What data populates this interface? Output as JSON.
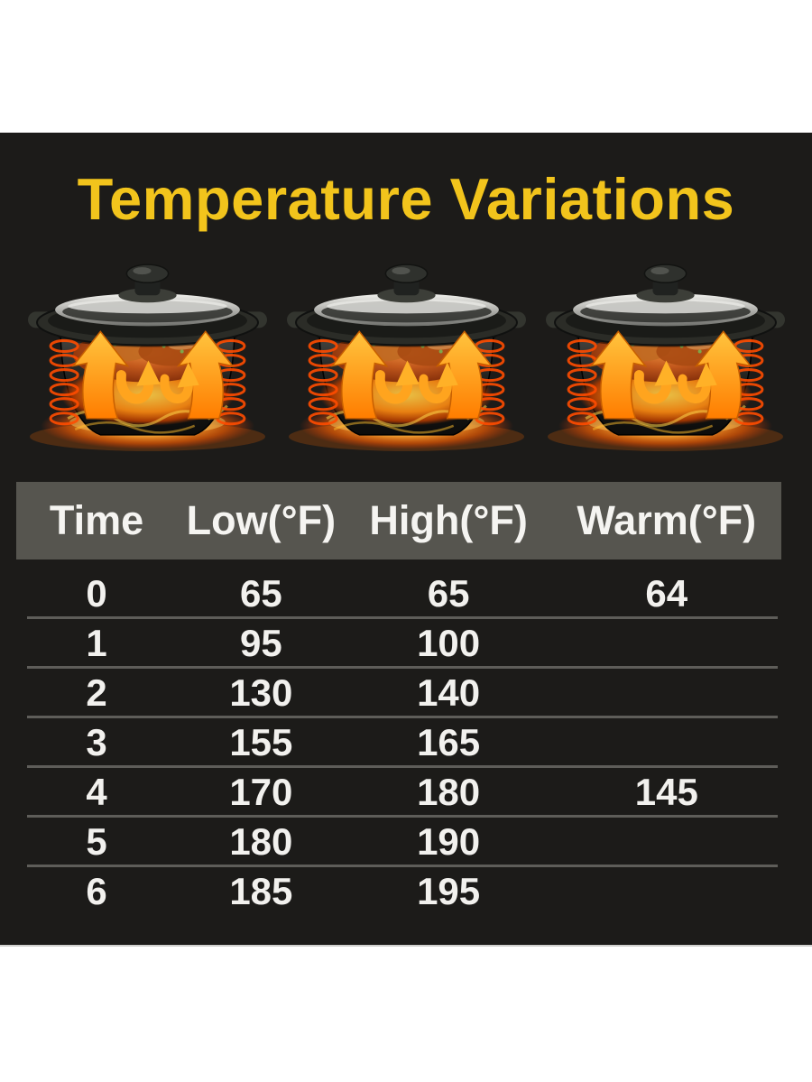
{
  "title": "Temperature Variations",
  "colors": {
    "page_bg": "#ffffff",
    "panel": "#1c1b19",
    "accent": "#f2c41c",
    "header_bg": "#56554f",
    "header_text": "#f5f4f1",
    "cell_text": "#f2f1ee",
    "divider": "#5e5d59"
  },
  "illustration": {
    "icon": "slow-cooker-heat-circulation-icon",
    "count": 3
  },
  "table": {
    "columns": [
      "Time",
      "Low(°F)",
      "High(°F)",
      "Warm(°F)"
    ],
    "rows": [
      [
        "0",
        "65",
        "65",
        "64"
      ],
      [
        "1",
        "95",
        "100",
        ""
      ],
      [
        "2",
        "130",
        "140",
        ""
      ],
      [
        "3",
        "155",
        "165",
        ""
      ],
      [
        "4",
        "170",
        "180",
        "145"
      ],
      [
        "5",
        "180",
        "190",
        ""
      ],
      [
        "6",
        "185",
        "195",
        ""
      ]
    ]
  },
  "chart_data": {
    "type": "table",
    "title": "Temperature Variations",
    "columns": [
      "Time",
      "Low(°F)",
      "High(°F)",
      "Warm(°F)"
    ],
    "rows": [
      [
        0,
        65,
        65,
        64
      ],
      [
        1,
        95,
        100,
        null
      ],
      [
        2,
        130,
        140,
        null
      ],
      [
        3,
        155,
        165,
        null
      ],
      [
        4,
        170,
        180,
        145
      ],
      [
        5,
        180,
        190,
        null
      ],
      [
        6,
        185,
        195,
        null
      ]
    ],
    "units": "°F",
    "layout": "dark infographic panel on white page, gray header band, thin gray row dividers"
  }
}
